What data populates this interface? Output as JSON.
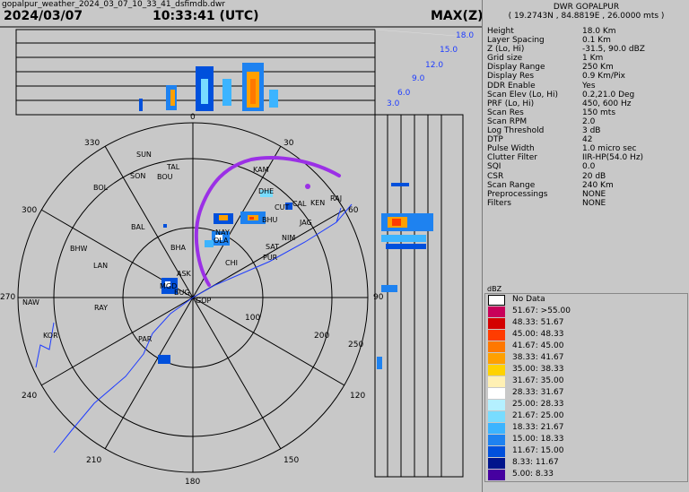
{
  "file_name": "gopalpur_weather_2024_03_07_10_33_41_dsfimdb.dwr",
  "date": "2024/03/07",
  "time": "10:33:41 (UTC)",
  "product": "MAX(Z)",
  "panel": {
    "title": "DWR GOPALPUR",
    "coords": "( 19.2743N , 84.8819E , 26.0000 mts )",
    "rows": [
      {
        "key": "Height",
        "value": "18.0 Km"
      },
      {
        "key": "Layer Spacing",
        "value": "0.1 Km"
      },
      {
        "key": "Z (Lo, Hi)",
        "value": "-31.5, 90.0 dBZ"
      },
      {
        "key": "Grid size",
        "value": "1 Km"
      },
      {
        "key": "Display Range",
        "value": "250 Km"
      },
      {
        "key": "Display Res",
        "value": "0.9 Km/Pix"
      },
      {
        "key": "DDR Enable",
        "value": "Yes"
      },
      {
        "key": "Scan Elev (Lo, Hi)",
        "value": "0.2,21.0 Deg"
      },
      {
        "key": "PRF (Lo, Hi)",
        "value": "450, 600 Hz"
      },
      {
        "key": "Scan Res",
        "value": "150 mts"
      },
      {
        "key": "Scan RPM",
        "value": "2.0"
      },
      {
        "key": "Log Threshold",
        "value": "3 dB"
      },
      {
        "key": "DTP",
        "value": "42"
      },
      {
        "key": "Pulse Width",
        "value": "1.0 micro sec"
      },
      {
        "key": "Clutter Filter",
        "value": "IIR-HP(54.0 Hz)"
      },
      {
        "key": "SQI",
        "value": "0.0"
      },
      {
        "key": "CSR",
        "value": "20 dB"
      },
      {
        "key": "Scan Range",
        "value": "240 Km"
      },
      {
        "key": "Preprocessings",
        "value": "NONE"
      },
      {
        "key": "Filters",
        "value": "NONE"
      }
    ]
  },
  "legend": {
    "unit": "dBZ",
    "no_data_label": "No Data",
    "items": [
      {
        "label": "51.67: >55.00",
        "color": "#c8005a"
      },
      {
        "label": "48.33: 51.67",
        "color": "#d40000"
      },
      {
        "label": "45.00: 48.33",
        "color": "#ff3c00"
      },
      {
        "label": "41.67: 45.00",
        "color": "#ff7800"
      },
      {
        "label": "38.33: 41.67",
        "color": "#ffa000"
      },
      {
        "label": "35.00: 38.33",
        "color": "#ffd200"
      },
      {
        "label": "31.67: 35.00",
        "color": "#fff0b4"
      },
      {
        "label": "28.33: 31.67",
        "color": "#ffffff"
      },
      {
        "label": "25.00: 28.33",
        "color": "#b4f0ff"
      },
      {
        "label": "21.67: 25.00",
        "color": "#78dcff"
      },
      {
        "label": "18.33: 21.67",
        "color": "#3cb4ff"
      },
      {
        "label": "15.00: 18.33",
        "color": "#1e82f0"
      },
      {
        "label": "11.67: 15.00",
        "color": "#0050dc"
      },
      {
        "label": "8.33: 11.67",
        "color": "#00148c"
      },
      {
        "label": "5.00: 8.33",
        "color": "#4600a0"
      }
    ]
  },
  "azimuth_labels": [
    "0",
    "30",
    "60",
    "90",
    "120",
    "150",
    "180",
    "210",
    "240",
    "270",
    "300",
    "330"
  ],
  "range_labels": [
    "100",
    "200",
    "250"
  ],
  "height_labels": [
    "3.0",
    "6.0",
    "9.0",
    "12.0",
    "15.0",
    "18.0"
  ],
  "stations": [
    "SUN",
    "TAL",
    "SON",
    "BOU",
    "BOL",
    "KAM",
    "DHE",
    "CAL",
    "KEN",
    "RAJ",
    "CUT",
    "BHU",
    "JAG",
    "BAL",
    "BHA",
    "NAY",
    "OLA",
    "NIM",
    "SAT",
    "PUR",
    "BHW",
    "LAN",
    "CHI",
    "ASK",
    "MGD",
    "BUG",
    "GOP",
    "NAW",
    "RAY",
    "KOR",
    "PAR"
  ],
  "colors": {
    "annotation": "#9b30e6",
    "range_ring": "#000000",
    "coast": "#1e3cff"
  }
}
